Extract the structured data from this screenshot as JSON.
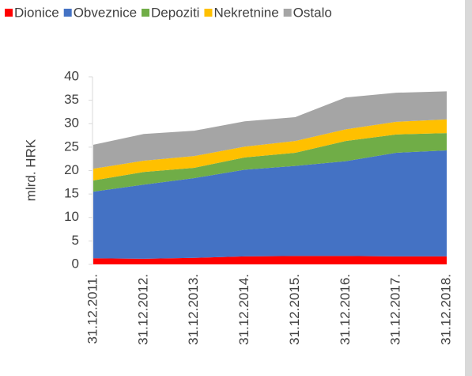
{
  "chart_data": {
    "type": "stacked-area",
    "y_label": "mlrd. HRK",
    "categories": [
      "31.12.2011.",
      "31.12.2012.",
      "31.12.2013.",
      "31.12.2014.",
      "31.12.2015.",
      "31.12.2016.",
      "31.12.2017.",
      "31.12.2018."
    ],
    "series": [
      {
        "name": "Dionice",
        "color": "#ff0000",
        "values": [
          1.3,
          1.2,
          1.4,
          1.7,
          1.8,
          1.8,
          1.7,
          1.7
        ]
      },
      {
        "name": "Obveznice",
        "color": "#4472c4",
        "values": [
          14.2,
          15.8,
          17.0,
          18.5,
          19.2,
          20.2,
          22.1,
          22.6
        ]
      },
      {
        "name": "Depoziti",
        "color": "#70ad47",
        "values": [
          2.4,
          2.7,
          2.2,
          2.6,
          2.8,
          4.3,
          3.9,
          3.7
        ]
      },
      {
        "name": "Nekretnine",
        "color": "#ffc000",
        "values": [
          2.5,
          2.4,
          2.5,
          2.3,
          2.5,
          2.5,
          2.7,
          2.9
        ]
      },
      {
        "name": "Ostalo",
        "color": "#a5a5a5",
        "values": [
          5.1,
          5.7,
          5.4,
          5.4,
          5.1,
          6.8,
          6.2,
          6.0
        ]
      }
    ],
    "ylim": [
      0,
      40
    ],
    "yticks": [
      0,
      5,
      10,
      15,
      20,
      25,
      30,
      35,
      40
    ],
    "grid": false,
    "legend": "top"
  }
}
